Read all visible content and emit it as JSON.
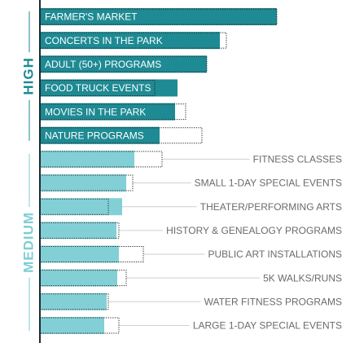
{
  "chart_data": {
    "type": "bar",
    "xlim": [
      0,
      300
    ],
    "groups": [
      {
        "label": "HIGH",
        "color": "#1e8a93",
        "label_color": "#1e8a93",
        "categories": [
          "FARMER'S MARKET",
          "CONCERTS IN THE PARK",
          "ADULT (50+) PROGRAMS",
          "FOOD TRUCK EVENTS",
          "MOVIES IN THE PARK",
          "NATURE PROGRAMS"
        ],
        "values": [
          291,
          221,
          205,
          169,
          166,
          147
        ],
        "outline_values": [
          291,
          229,
          205,
          141,
          179,
          199
        ]
      },
      {
        "label": "MEDIUM",
        "color": "#82d0d6",
        "label_color": "#7fcdd3",
        "categories": [
          "FITNESS CLASSES",
          "SMALL 1-DAY SPECIAL EVENTS",
          "THEATER/PERFORMING ARTS",
          "HISTORY & GENEALOGY PROGRAMS",
          "PUBLIC ART INSTALLATIONS",
          "5K WALKS/RUNS",
          "WATER FITNESS PROGRAMS",
          "LARGE 1-DAY SPECIAL EVENTS"
        ],
        "values": [
          116,
          106,
          101,
          94,
          97,
          95,
          82,
          79
        ],
        "outline_values": [
          150,
          114,
          84,
          97,
          127,
          106,
          84,
          97
        ]
      }
    ]
  }
}
